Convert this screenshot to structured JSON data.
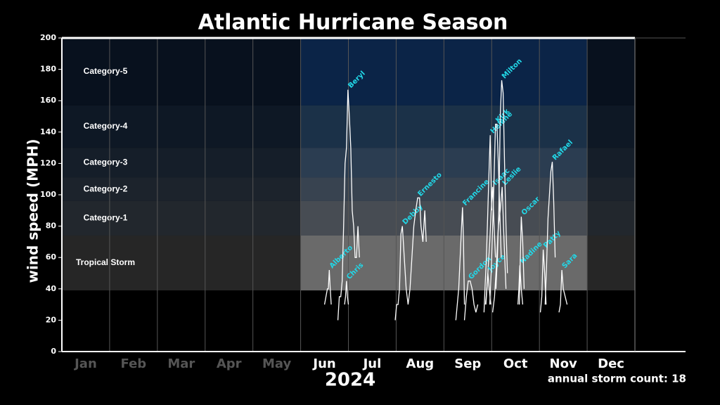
{
  "chart_data": {
    "type": "line",
    "title": "Atlantic Hurricane Season",
    "y_label": "wind speed (MPH)",
    "x_label": "2024",
    "annotation": "annual storm count: 18",
    "categories": [
      "Jan",
      "Feb",
      "Mar",
      "Apr",
      "May",
      "Jun",
      "Jul",
      "Aug",
      "Sep",
      "Oct",
      "Nov",
      "Dec"
    ],
    "season": [
      5,
      11
    ],
    "xlim": [
      0,
      12
    ],
    "ylim": [
      0,
      200
    ],
    "yticks": [
      0,
      20,
      40,
      60,
      80,
      100,
      120,
      140,
      160,
      180,
      200
    ],
    "bands": [
      {
        "name": "Tropical Storm",
        "range": [
          39,
          74
        ],
        "color": "#262626",
        "season_color": "#6a6a6a"
      },
      {
        "name": "Category-1",
        "range": [
          74,
          96
        ],
        "color": "#22272d",
        "season_color": "#474c53"
      },
      {
        "name": "Category-2",
        "range": [
          96,
          111
        ],
        "color": "#1c232c",
        "season_color": "#384350"
      },
      {
        "name": "Category-3",
        "range": [
          111,
          130
        ],
        "color": "#151e29",
        "season_color": "#2b3d51"
      },
      {
        "name": "Category-4",
        "range": [
          130,
          157
        ],
        "color": "#0e1825",
        "season_color": "#1b3148"
      },
      {
        "name": "Category-5",
        "range": [
          157,
          200
        ],
        "color": "#08111e",
        "season_color": "#0b2447"
      }
    ],
    "line_color": "#ffffff",
    "label_color": "#22d8e8",
    "series": [
      {
        "name": "Alberto",
        "x": [
          5.5,
          5.53,
          5.56,
          5.58,
          5.6,
          5.62,
          5.64
        ],
        "values": [
          30,
          35,
          40,
          40,
          52,
          40,
          30
        ]
      },
      {
        "name": "Beryl",
        "x": [
          5.78,
          5.81,
          5.84,
          5.87,
          5.9,
          5.93,
          5.96,
          5.99,
          6.02,
          6.05,
          6.08,
          6.11,
          6.14,
          6.17,
          6.2,
          6.23
        ],
        "values": [
          20,
          35,
          35,
          45,
          80,
          120,
          130,
          167,
          150,
          130,
          90,
          80,
          60,
          60,
          80,
          60
        ]
      },
      {
        "name": "Chris",
        "x": [
          5.92,
          5.94,
          5.96,
          5.98,
          6.0
        ],
        "values": [
          30,
          35,
          45,
          35,
          30
        ]
      },
      {
        "name": "Debby",
        "x": [
          6.98,
          7.01,
          7.04,
          7.07,
          7.1,
          7.13,
          7.17,
          7.21,
          7.25
        ],
        "values": [
          20,
          30,
          30,
          40,
          75,
          80,
          60,
          40,
          30
        ]
      },
      {
        "name": "Ernesto",
        "x": [
          7.25,
          7.29,
          7.33,
          7.37,
          7.41,
          7.45,
          7.49,
          7.52,
          7.56,
          7.6,
          7.63
        ],
        "values": [
          30,
          40,
          60,
          80,
          90,
          98,
          98,
          80,
          70,
          90,
          70
        ]
      },
      {
        "name": "Francine",
        "x": [
          8.25,
          8.28,
          8.31,
          8.34,
          8.37,
          8.39,
          8.41,
          8.43
        ],
        "values": [
          20,
          30,
          40,
          60,
          80,
          92,
          70,
          30
        ]
      },
      {
        "name": "Gordon",
        "x": [
          8.43,
          8.47,
          8.51,
          8.55,
          8.59,
          8.63,
          8.67,
          8.71
        ],
        "values": [
          20,
          35,
          45,
          45,
          40,
          30,
          25,
          30
        ]
      },
      {
        "name": "Helene",
        "x": [
          8.84,
          8.86,
          8.89,
          8.92,
          8.95,
          8.97,
          9.0
        ],
        "values": [
          25,
          40,
          60,
          90,
          120,
          138,
          90
        ]
      },
      {
        "name": "Isaac",
        "x": [
          8.87,
          8.9,
          8.93,
          8.96,
          8.99,
          9.02,
          9.05,
          9.08
        ],
        "values": [
          30,
          40,
          55,
          70,
          90,
          105,
          80,
          60
        ]
      },
      {
        "name": "Joyce",
        "x": [
          8.88,
          8.9,
          8.92,
          8.95,
          8.98
        ],
        "values": [
          30,
          40,
          50,
          40,
          30
        ]
      },
      {
        "name": "Kirk",
        "x": [
          8.96,
          8.99,
          9.02,
          9.05,
          9.08,
          9.11,
          9.14,
          9.17,
          9.2
        ],
        "values": [
          30,
          50,
          80,
          110,
          145,
          145,
          120,
          90,
          60
        ]
      },
      {
        "name": "Leslie",
        "x": [
          9.02,
          9.06,
          9.1,
          9.14,
          9.18,
          9.22,
          9.26,
          9.3
        ],
        "values": [
          25,
          35,
          55,
          80,
          90,
          105,
          70,
          40
        ]
      },
      {
        "name": "Milton",
        "x": [
          9.09,
          9.12,
          9.15,
          9.18,
          9.21,
          9.24,
          9.27,
          9.3,
          9.33
        ],
        "values": [
          40,
          60,
          90,
          150,
          173,
          165,
          120,
          80,
          50
        ]
      },
      {
        "name": "Nadine",
        "x": [
          9.55,
          9.57,
          9.59,
          9.62,
          9.65
        ],
        "values": [
          30,
          40,
          55,
          40,
          30
        ]
      },
      {
        "name": "Oscar",
        "x": [
          9.58,
          9.6,
          9.62,
          9.65,
          9.68
        ],
        "values": [
          30,
          60,
          86,
          70,
          40
        ]
      },
      {
        "name": "Patty",
        "x": [
          10.02,
          10.05,
          10.08,
          10.11,
          10.14
        ],
        "values": [
          25,
          35,
          65,
          50,
          30
        ]
      },
      {
        "name": "Rafael",
        "x": [
          10.12,
          10.15,
          10.18,
          10.21,
          10.24,
          10.27,
          10.3,
          10.33
        ],
        "values": [
          30,
          55,
          85,
          100,
          115,
          121,
          95,
          60
        ]
      },
      {
        "name": "Sara",
        "x": [
          10.41,
          10.44,
          10.47,
          10.5,
          10.54,
          10.58
        ],
        "values": [
          25,
          30,
          52,
          40,
          35,
          30
        ]
      }
    ]
  }
}
